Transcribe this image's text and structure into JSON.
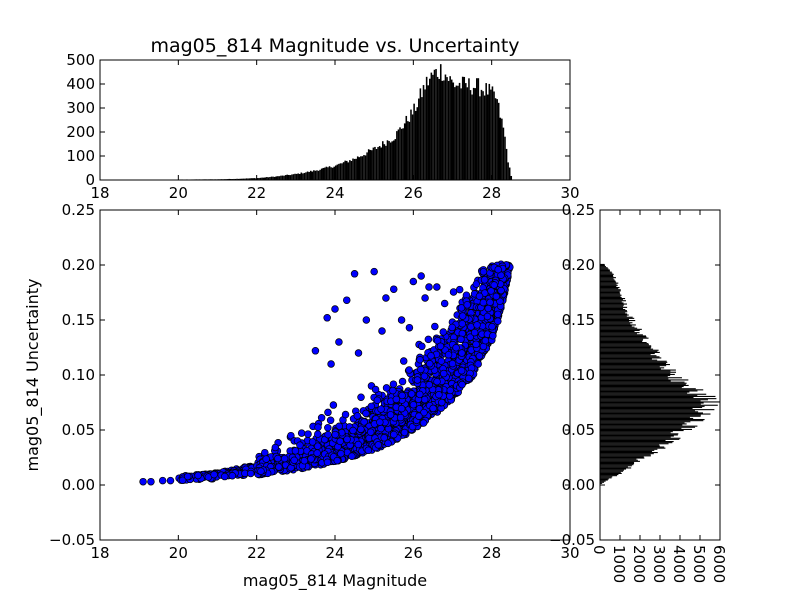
{
  "page": {
    "background": "#ffffff"
  },
  "chart_data": [
    {
      "id": "top_histogram",
      "type": "bar",
      "title": "mag05_814 Magnitude vs. Uncertainty",
      "xlabel": "",
      "ylabel": "",
      "xlim": [
        18,
        30
      ],
      "ylim": [
        0,
        500
      ],
      "xticks": [
        "18",
        "20",
        "22",
        "24",
        "26",
        "28",
        "30"
      ],
      "yticks": [
        "0",
        "100",
        "200",
        "300",
        "400",
        "500"
      ],
      "bin_width": 0.04,
      "profile": {
        "x": [
          19.0,
          20.0,
          21.0,
          21.5,
          22.0,
          22.5,
          23.0,
          23.5,
          24.0,
          24.5,
          25.0,
          25.5,
          26.0,
          26.3,
          26.5,
          26.7,
          27.0,
          27.3,
          27.6,
          27.9,
          28.1,
          28.3,
          28.4,
          28.5
        ],
        "y": [
          1,
          2,
          3,
          5,
          8,
          15,
          25,
          40,
          60,
          90,
          130,
          180,
          290,
          400,
          440,
          460,
          400,
          395,
          390,
          370,
          340,
          200,
          80,
          0
        ]
      },
      "colors": {
        "bar": "#000000"
      }
    },
    {
      "id": "main_scatter",
      "type": "scatter",
      "title": "",
      "xlabel": "mag05_814 Magnitude",
      "ylabel": "mag05_814 Uncertainty",
      "xlim": [
        18,
        30
      ],
      "ylim": [
        -0.05,
        0.25
      ],
      "xticks": [
        "18",
        "20",
        "22",
        "24",
        "26",
        "28",
        "30"
      ],
      "yticks": [
        "−0.05",
        "0.00",
        "0.05",
        "0.10",
        "0.15",
        "0.20",
        "0.25"
      ],
      "lower_envelope": {
        "x": [
          19.1,
          20.0,
          21.0,
          22.0,
          23.0,
          24.0,
          25.0,
          25.5,
          26.0,
          26.5,
          27.0,
          27.5,
          28.0,
          28.3,
          28.5
        ],
        "y": [
          0.003,
          0.004,
          0.006,
          0.009,
          0.014,
          0.021,
          0.032,
          0.04,
          0.05,
          0.062,
          0.078,
          0.098,
          0.13,
          0.165,
          0.2
        ]
      },
      "outliers": {
        "x": [
          19.1,
          19.3,
          19.6,
          19.8,
          24.0,
          24.3,
          24.5,
          25.0,
          25.3,
          25.5,
          26.0,
          26.2,
          26.4,
          23.8,
          23.5,
          24.8,
          25.2,
          24.1,
          23.9,
          24.6,
          25.7,
          26.6,
          26.3,
          26.8,
          25.9
        ],
        "y": [
          0.003,
          0.003,
          0.004,
          0.004,
          0.16,
          0.168,
          0.192,
          0.194,
          0.17,
          0.178,
          0.185,
          0.19,
          0.18,
          0.152,
          0.122,
          0.15,
          0.14,
          0.13,
          0.11,
          0.12,
          0.15,
          0.18,
          0.17,
          0.165,
          0.143
        ]
      },
      "colors": {
        "marker_fill": "#0000ff",
        "marker_edge": "#000000"
      }
    },
    {
      "id": "right_histogram",
      "type": "bar",
      "orientation": "horizontal",
      "title": "",
      "xlabel": "",
      "ylabel": "",
      "xlim": [
        0,
        6000
      ],
      "ylim": [
        -0.05,
        0.25
      ],
      "xticks": [
        "0",
        "1000",
        "2000",
        "3000",
        "4000",
        "5000",
        "6000"
      ],
      "yticks": [
        "−0.05",
        "0.00",
        "0.05",
        "0.10",
        "0.15",
        "0.20",
        "0.25"
      ],
      "bin_width": 0.001,
      "profile": {
        "y": [
          0.0,
          0.005,
          0.01,
          0.02,
          0.03,
          0.04,
          0.05,
          0.06,
          0.07,
          0.075,
          0.08,
          0.09,
          0.1,
          0.11,
          0.12,
          0.13,
          0.14,
          0.15,
          0.16,
          0.17,
          0.18,
          0.19,
          0.195,
          0.2,
          0.201
        ],
        "x": [
          0,
          500,
          1000,
          1800,
          2700,
          3500,
          4200,
          4800,
          5300,
          5500,
          5200,
          4300,
          3600,
          3100,
          2700,
          2300,
          1900,
          1600,
          1300,
          1100,
          900,
          700,
          500,
          200,
          0
        ]
      },
      "colors": {
        "bar": "#000000"
      }
    }
  ]
}
